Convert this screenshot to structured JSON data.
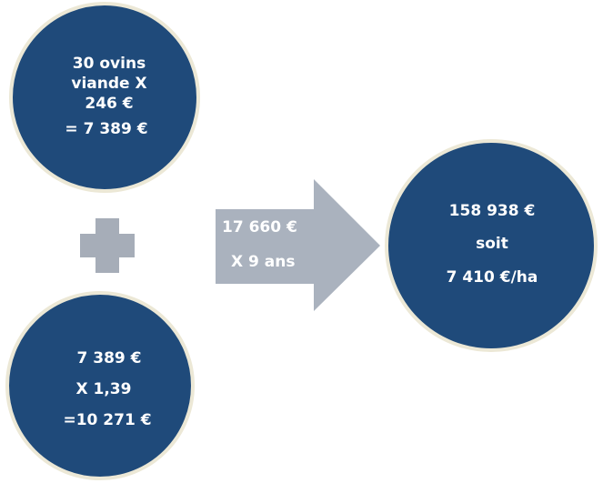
{
  "nodes": [
    {
      "lines": [
        "30 ovins",
        "viande X",
        "246 €",
        "= 7 389 €"
      ]
    },
    {
      "lines": [
        "7 389 €",
        "X 1,39",
        "=10 271 €"
      ]
    },
    {
      "lines": [
        "17 660 €",
        "X 9 ans"
      ]
    },
    {
      "lines": [
        "158 938 €",
        "soit",
        "7 410 €/ha"
      ]
    }
  ]
}
